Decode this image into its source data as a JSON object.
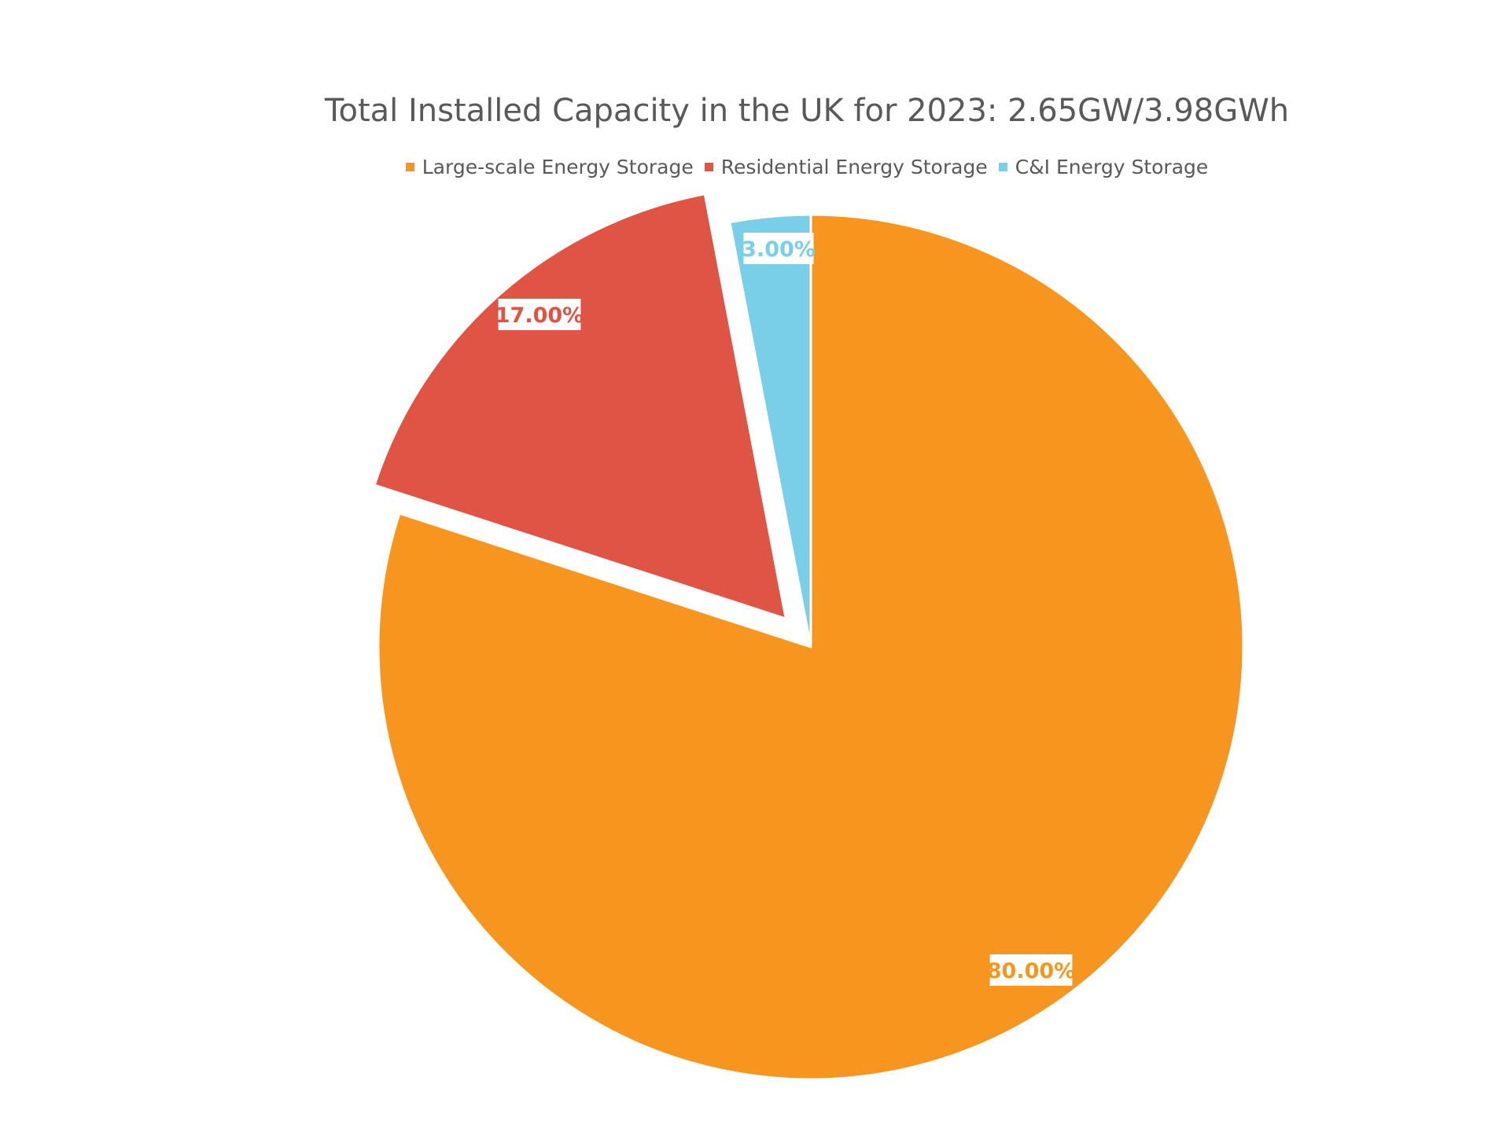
{
  "chart_data": {
    "type": "pie",
    "title": "Total Installed Capacity in the UK for 2023: 2.65GW/3.98GWh",
    "legend_position": "top",
    "categories": [
      "Large-scale Energy Storage",
      "Residential Energy Storage",
      "C&I Energy Storage"
    ],
    "values": [
      80.0,
      17.0,
      3.0
    ],
    "data_labels": [
      "80.00%",
      "17.00%",
      "3.00%"
    ],
    "colors": [
      "#F7961E",
      "#E05443",
      "#79CFE8"
    ],
    "exploded": [
      false,
      true,
      false
    ]
  }
}
